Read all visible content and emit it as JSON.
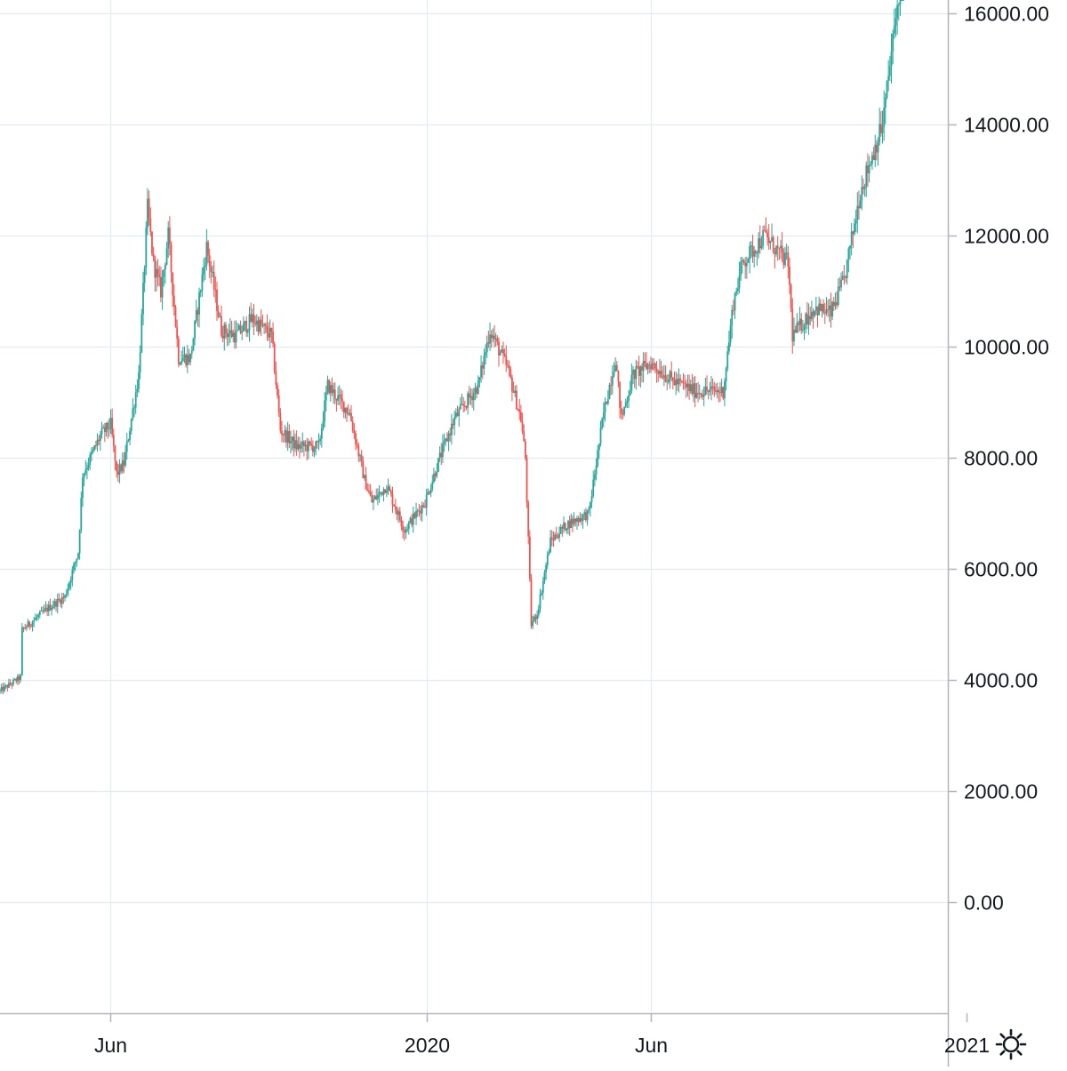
{
  "chart_data": {
    "type": "candlestick",
    "title": "",
    "xlabel": "",
    "ylabel": "",
    "x_range": [
      "2019-03-18",
      "2021-03-10"
    ],
    "ylim": [
      -2000,
      16300
    ],
    "y_ticks": [
      0,
      2000,
      4000,
      6000,
      8000,
      10000,
      12000,
      14000,
      16000
    ],
    "y_tick_labels": [
      "0.00",
      "2000.00",
      "4000.00",
      "6000.00",
      "8000.00",
      "10000.00",
      "12000.00",
      "14000.00",
      "16000.00"
    ],
    "x_ticks": [
      {
        "date": "2019-06-01",
        "label": "Jun"
      },
      {
        "date": "2020-01-01",
        "label": "2020"
      },
      {
        "date": "2020-06-01",
        "label": "Jun"
      },
      {
        "date": "2021-01-01",
        "label": "2021"
      }
    ],
    "grid": true,
    "legend": "none",
    "up_color": "#26a69a",
    "down_color": "#ef5350",
    "close_path": [
      [
        "2019-03-18",
        3800
      ],
      [
        "2019-04-01",
        4050
      ],
      [
        "2019-04-02",
        4900
      ],
      [
        "2019-04-20",
        5300
      ],
      [
        "2019-05-01",
        5500
      ],
      [
        "2019-05-10",
        6300
      ],
      [
        "2019-05-13",
        7700
      ],
      [
        "2019-05-20",
        8100
      ],
      [
        "2019-05-25",
        8400
      ],
      [
        "2019-06-01",
        8600
      ],
      [
        "2019-06-05",
        7700
      ],
      [
        "2019-06-10",
        7900
      ],
      [
        "2019-06-20",
        9500
      ],
      [
        "2019-06-26",
        12500
      ],
      [
        "2019-06-30",
        11500
      ],
      [
        "2019-07-05",
        11000
      ],
      [
        "2019-07-10",
        12000
      ],
      [
        "2019-07-17",
        9800
      ],
      [
        "2019-07-25",
        9800
      ],
      [
        "2019-08-05",
        11800
      ],
      [
        "2019-08-15",
        10300
      ],
      [
        "2019-08-25",
        10200
      ],
      [
        "2019-09-05",
        10500
      ],
      [
        "2019-09-18",
        10200
      ],
      [
        "2019-09-24",
        8500
      ],
      [
        "2019-10-05",
        8200
      ],
      [
        "2019-10-20",
        8200
      ],
      [
        "2019-10-26",
        9300
      ],
      [
        "2019-11-10",
        8800
      ],
      [
        "2019-11-20",
        7600
      ],
      [
        "2019-11-25",
        7200
      ],
      [
        "2019-12-05",
        7500
      ],
      [
        "2019-12-17",
        6700
      ],
      [
        "2019-12-31",
        7200
      ],
      [
        "2020-01-10",
        8000
      ],
      [
        "2020-01-20",
        8700
      ],
      [
        "2020-02-05",
        9300
      ],
      [
        "2020-02-13",
        10300
      ],
      [
        "2020-02-25",
        9600
      ],
      [
        "2020-03-05",
        8700
      ],
      [
        "2020-03-08",
        8000
      ],
      [
        "2020-03-12",
        5000
      ],
      [
        "2020-03-16",
        5200
      ],
      [
        "2020-03-25",
        6500
      ],
      [
        "2020-04-05",
        6800
      ],
      [
        "2020-04-20",
        7000
      ],
      [
        "2020-04-30",
        8800
      ],
      [
        "2020-05-08",
        9800
      ],
      [
        "2020-05-12",
        8700
      ],
      [
        "2020-05-20",
        9500
      ],
      [
        "2020-06-01",
        9700
      ],
      [
        "2020-06-15",
        9400
      ],
      [
        "2020-07-01",
        9200
      ],
      [
        "2020-07-20",
        9200
      ],
      [
        "2020-07-27",
        10800
      ],
      [
        "2020-08-02",
        11500
      ],
      [
        "2020-08-17",
        12000
      ],
      [
        "2020-09-02",
        11500
      ],
      [
        "2020-09-05",
        10200
      ],
      [
        "2020-09-20",
        10700
      ],
      [
        "2020-10-01",
        10600
      ],
      [
        "2020-10-10",
        11200
      ],
      [
        "2020-10-21",
        12800
      ],
      [
        "2020-11-05",
        14000
      ],
      [
        "2020-11-12",
        15500
      ],
      [
        "2020-11-19",
        17000
      ]
    ]
  },
  "settings": {
    "icon": "gear-icon"
  }
}
